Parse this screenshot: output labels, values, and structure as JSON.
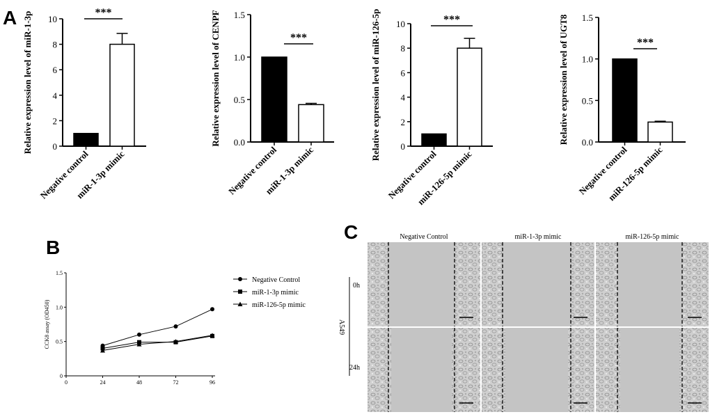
{
  "panels": {
    "a": "A",
    "b": "B",
    "c": "C"
  },
  "chart_data": [
    {
      "type": "bar",
      "ylabel": "Relative expression level of miR-1-3p",
      "categories": [
        "Negative control",
        "miR-1-3p mimic"
      ],
      "values": [
        1.0,
        8.0
      ],
      "errors": [
        0,
        0.85
      ],
      "bar_fills": [
        "#000000",
        "#ffffff"
      ],
      "ylim": [
        0,
        10
      ],
      "yticks": [
        "0",
        "2",
        "4",
        "6",
        "8",
        "10"
      ],
      "significance": "***"
    },
    {
      "type": "bar",
      "ylabel": "Relative expression level of CENPF",
      "categories": [
        "Negative control",
        "miR-1-3p mimic"
      ],
      "values": [
        1.0,
        0.44
      ],
      "errors": [
        0,
        0.015
      ],
      "bar_fills": [
        "#000000",
        "#ffffff"
      ],
      "ylim": [
        0,
        1.5
      ],
      "yticks": [
        "0.0",
        "0.5",
        "1.0",
        "1.5"
      ],
      "significance": "***"
    },
    {
      "type": "bar",
      "ylabel": "Relative expression level of miR-126-5p",
      "categories": [
        "Negative control",
        "miR-126-5p mimic"
      ],
      "values": [
        1.0,
        8.0
      ],
      "errors": [
        0,
        0.8
      ],
      "bar_fills": [
        "#000000",
        "#ffffff"
      ],
      "ylim": [
        0,
        10
      ],
      "yticks": [
        "0",
        "2",
        "4",
        "6",
        "8",
        "10"
      ],
      "significance": "***"
    },
    {
      "type": "bar",
      "ylabel": "Relative expression level of UGT8",
      "categories": [
        "Negative control",
        "miR-126-5p mimic"
      ],
      "values": [
        1.0,
        0.24
      ],
      "errors": [
        0,
        0.01
      ],
      "bar_fills": [
        "#000000",
        "#ffffff"
      ],
      "ylim": [
        0,
        1.5
      ],
      "yticks": [
        "0.0",
        "0.5",
        "1.0",
        "1.5"
      ],
      "significance": "***"
    },
    {
      "type": "line",
      "ylabel": "CCK8 assay (OD450)",
      "x": [
        24,
        48,
        72,
        96
      ],
      "xlim": [
        0,
        96
      ],
      "xticks": [
        "0",
        "24",
        "48",
        "72",
        "96"
      ],
      "ylim": [
        0,
        1.5
      ],
      "yticks": [
        "0",
        "0.5",
        "1.0",
        "1.5"
      ],
      "legend_position": "right",
      "series": [
        {
          "name": "Negative Control",
          "marker": "circle",
          "values": [
            0.44,
            0.6,
            0.72,
            0.97
          ]
        },
        {
          "name": "miR-1-3p mimic",
          "marker": "square",
          "values": [
            0.4,
            0.49,
            0.49,
            0.58
          ]
        },
        {
          "name": "miR-126-5p mimic",
          "marker": "triangle",
          "values": [
            0.37,
            0.46,
            0.5,
            0.59
          ]
        }
      ]
    }
  ],
  "micrographs": {
    "columns": [
      "Negative Control",
      "miR-1-3p mimic",
      "miR-126-5p mimic"
    ],
    "rows": [
      "0h",
      "24h"
    ],
    "cell_line": "A549"
  }
}
